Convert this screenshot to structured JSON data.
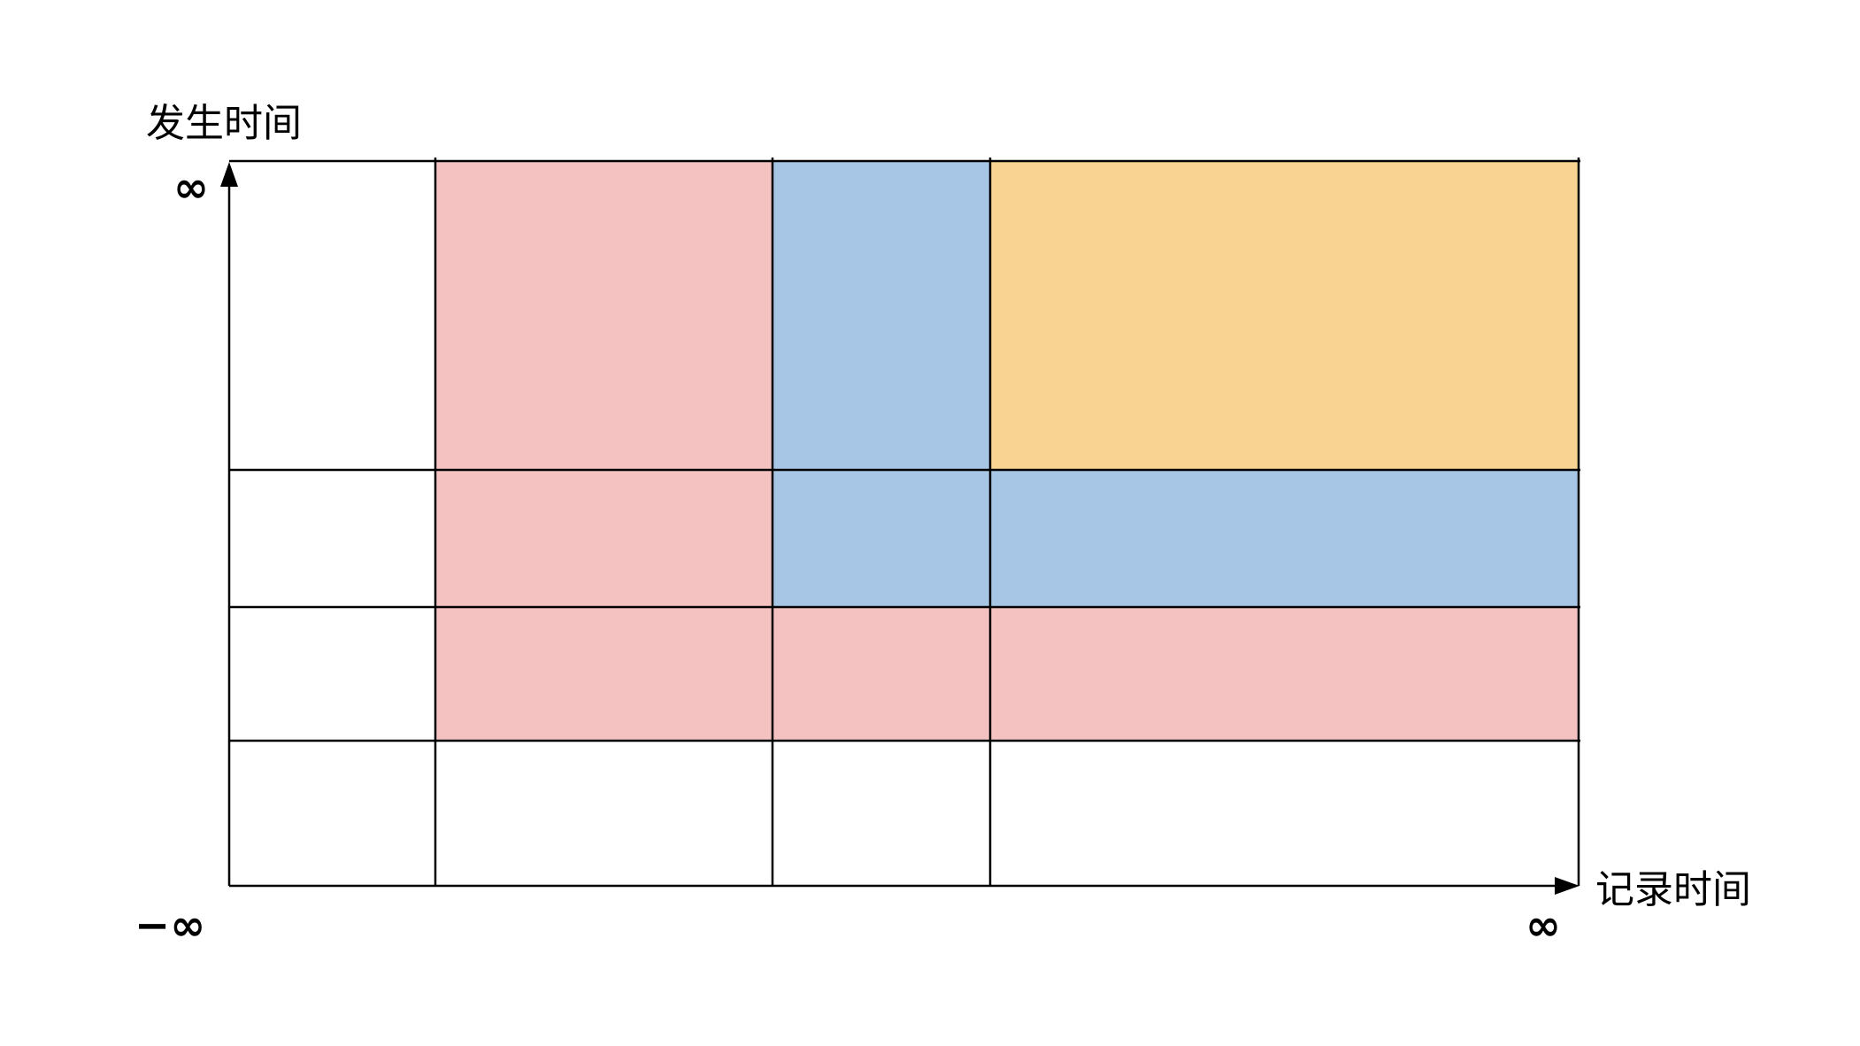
{
  "y_axis": {
    "label": "发生时间",
    "max_label": "∞",
    "min_label": "−∞"
  },
  "x_axis": {
    "label": "记录时间",
    "max_label": "∞"
  },
  "colors": {
    "pink": "#F5C2C2",
    "blue": "#A7C6E5",
    "orange": "#F9D391",
    "line": "#000000"
  }
}
